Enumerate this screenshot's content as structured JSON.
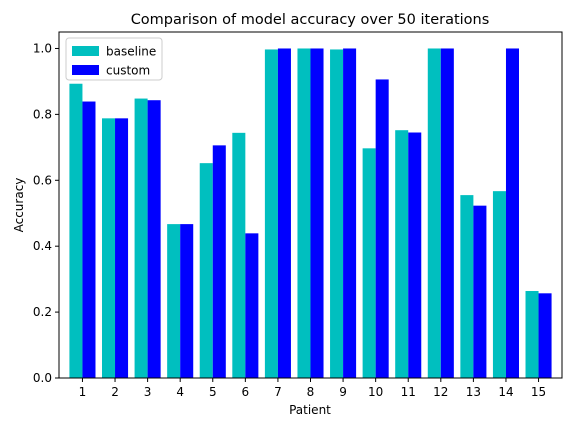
{
  "chart_data": {
    "type": "bar",
    "title": "Comparison of model accuracy over 50 iterations",
    "xlabel": "Patient",
    "ylabel": "Accuracy",
    "categories": [
      "1",
      "2",
      "3",
      "4",
      "5",
      "6",
      "7",
      "8",
      "9",
      "10",
      "11",
      "12",
      "13",
      "14",
      "15"
    ],
    "ylim": [
      0,
      1.05
    ],
    "yticks": [
      "0.0",
      "0.2",
      "0.4",
      "0.6",
      "0.8",
      "1.0"
    ],
    "legend_position": "top-left",
    "grid": false,
    "series": [
      {
        "name": "baseline",
        "color": "#00bfbf",
        "values": [
          0.893,
          0.788,
          0.848,
          0.467,
          0.652,
          0.744,
          0.997,
          1.0,
          0.997,
          0.697,
          0.752,
          1.0,
          0.555,
          0.567,
          0.264
        ]
      },
      {
        "name": "custom",
        "color": "#0000ff",
        "values": [
          0.839,
          0.788,
          0.843,
          0.467,
          0.706,
          0.439,
          1.0,
          1.0,
          1.0,
          0.906,
          0.745,
          1.0,
          0.523,
          1.0,
          0.257
        ]
      }
    ]
  }
}
